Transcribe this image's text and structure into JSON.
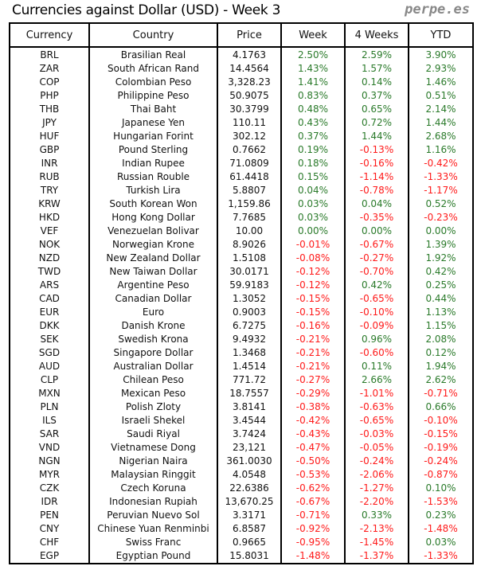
{
  "title": "Currencies against Dollar (USD) - Week 3",
  "brand": "perpe.es",
  "colors": {
    "positive": "#2a7a2a",
    "negative": "#ff1a1a"
  },
  "headers": [
    "Currency",
    "Country",
    "Price",
    "Week",
    "4 Weeks",
    "YTD"
  ],
  "rows": [
    [
      "BRL",
      "Brasilian Real",
      "4.1763",
      "2.50%",
      "2.59%",
      "3.90%"
    ],
    [
      "ZAR",
      "South African Rand",
      "14.4564",
      "1.43%",
      "1.57%",
      "2.93%"
    ],
    [
      "COP",
      "Colombian Peso",
      "3,328.23",
      "1.41%",
      "0.14%",
      "1.46%"
    ],
    [
      "PHP",
      "Philippine Peso",
      "50.9075",
      "0.83%",
      "0.37%",
      "0.51%"
    ],
    [
      "THB",
      "Thai Baht",
      "30.3799",
      "0.48%",
      "0.65%",
      "2.14%"
    ],
    [
      "JPY",
      "Japanese Yen",
      "110.11",
      "0.43%",
      "0.72%",
      "1.44%"
    ],
    [
      "HUF",
      "Hungarian Forint",
      "302.12",
      "0.37%",
      "1.44%",
      "2.68%"
    ],
    [
      "GBP",
      "Pound Sterling",
      "0.7662",
      "0.19%",
      "-0.13%",
      "1.16%"
    ],
    [
      "INR",
      "Indian Rupee",
      "71.0809",
      "0.18%",
      "-0.16%",
      "-0.42%"
    ],
    [
      "RUB",
      "Russian Rouble",
      "61.4418",
      "0.15%",
      "-1.14%",
      "-1.33%"
    ],
    [
      "TRY",
      "Turkish Lira",
      "5.8807",
      "0.04%",
      "-0.78%",
      "-1.17%"
    ],
    [
      "KRW",
      "South Korean Won",
      "1,159.86",
      "0.03%",
      "0.04%",
      "0.52%"
    ],
    [
      "HKD",
      "Hong Kong Dollar",
      "7.7685",
      "0.03%",
      "-0.35%",
      "-0.23%"
    ],
    [
      "VEF",
      "Venezuelan Bolivar",
      "10.00",
      "0.00%",
      "0.00%",
      "0.00%"
    ],
    [
      "NOK",
      "Norwegian Krone",
      "8.9026",
      "-0.01%",
      "-0.67%",
      "1.39%"
    ],
    [
      "NZD",
      "New Zealand Dollar",
      "1.5108",
      "-0.08%",
      "-0.27%",
      "1.92%"
    ],
    [
      "TWD",
      "New Taiwan Dollar",
      "30.0171",
      "-0.12%",
      "-0.70%",
      "0.42%"
    ],
    [
      "ARS",
      "Argentine Peso",
      "59.9183",
      "-0.12%",
      "0.42%",
      "0.25%"
    ],
    [
      "CAD",
      "Canadian Dollar",
      "1.3052",
      "-0.15%",
      "-0.65%",
      "0.44%"
    ],
    [
      "EUR",
      "Euro",
      "0.9003",
      "-0.15%",
      "-0.10%",
      "1.13%"
    ],
    [
      "DKK",
      "Danish Krone",
      "6.7275",
      "-0.16%",
      "-0.09%",
      "1.15%"
    ],
    [
      "SEK",
      "Swedish Krona",
      "9.4932",
      "-0.21%",
      "0.96%",
      "2.08%"
    ],
    [
      "SGD",
      "Singapore Dollar",
      "1.3468",
      "-0.21%",
      "-0.60%",
      "0.12%"
    ],
    [
      "AUD",
      "Australian Dollar",
      "1.4514",
      "-0.21%",
      "0.11%",
      "1.94%"
    ],
    [
      "CLP",
      "Chilean Peso",
      "771.72",
      "-0.27%",
      "2.66%",
      "2.62%"
    ],
    [
      "MXN",
      "Mexican Peso",
      "18.7557",
      "-0.29%",
      "-1.01%",
      "-0.71%"
    ],
    [
      "PLN",
      "Polish Zloty",
      "3.8141",
      "-0.38%",
      "-0.63%",
      "0.66%"
    ],
    [
      "ILS",
      "Israeli Shekel",
      "3.4544",
      "-0.42%",
      "-0.65%",
      "-0.10%"
    ],
    [
      "SAR",
      "Saudi Riyal",
      "3.7424",
      "-0.43%",
      "-0.03%",
      "-0.15%"
    ],
    [
      "VND",
      "Vietnamese Dong",
      "23,121",
      "-0.47%",
      "-0.05%",
      "-0.19%"
    ],
    [
      "NGN",
      "Nigerian Naira",
      "361.0030",
      "-0.50%",
      "-0.24%",
      "-0.24%"
    ],
    [
      "MYR",
      "Malaysian Ringgit",
      "4.0548",
      "-0.53%",
      "-2.06%",
      "-0.87%"
    ],
    [
      "CZK",
      "Czech Koruna",
      "22.6386",
      "-0.62%",
      "-1.27%",
      "0.10%"
    ],
    [
      "IDR",
      "Indonesian Rupiah",
      "13,670.25",
      "-0.67%",
      "-2.20%",
      "-1.53%"
    ],
    [
      "PEN",
      "Peruvian Nuevo Sol",
      "3.3171",
      "-0.71%",
      "0.33%",
      "0.23%"
    ],
    [
      "CNY",
      "Chinese Yuan Renminbi",
      "6.8587",
      "-0.92%",
      "-2.13%",
      "-1.48%"
    ],
    [
      "CHF",
      "Swiss Franc",
      "0.9665",
      "-0.95%",
      "-1.45%",
      "0.03%"
    ],
    [
      "EGP",
      "Egyptian Pound",
      "15.8031",
      "-1.48%",
      "-1.37%",
      "-1.33%"
    ]
  ]
}
